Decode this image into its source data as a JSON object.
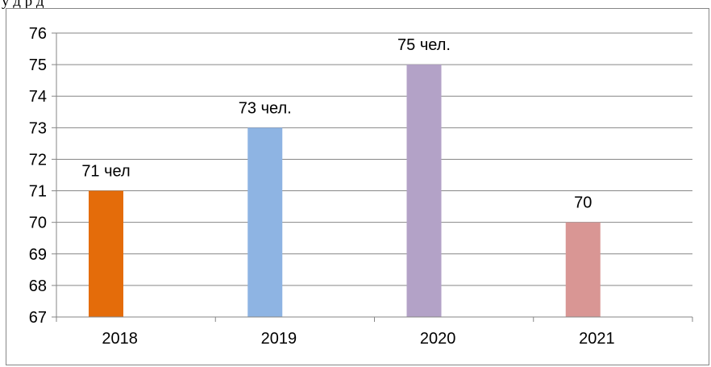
{
  "page": {
    "top_text": "у                    д              р    д"
  },
  "chart_data": {
    "type": "bar",
    "categories": [
      "2018",
      "2019",
      "2020",
      "2021"
    ],
    "values": [
      71,
      73,
      75,
      70
    ],
    "data_labels": [
      "71 чел",
      "73 чел.",
      "75 чел.",
      "70"
    ],
    "colors": [
      "#E46C0A",
      "#8EB4E3",
      "#B3A2C7",
      "#D99694"
    ],
    "ylim": [
      67,
      76
    ],
    "yticks": [
      67,
      68,
      69,
      70,
      71,
      72,
      73,
      74,
      75,
      76
    ],
    "grid": true,
    "legend": "none",
    "gridline_color": "#868686"
  }
}
